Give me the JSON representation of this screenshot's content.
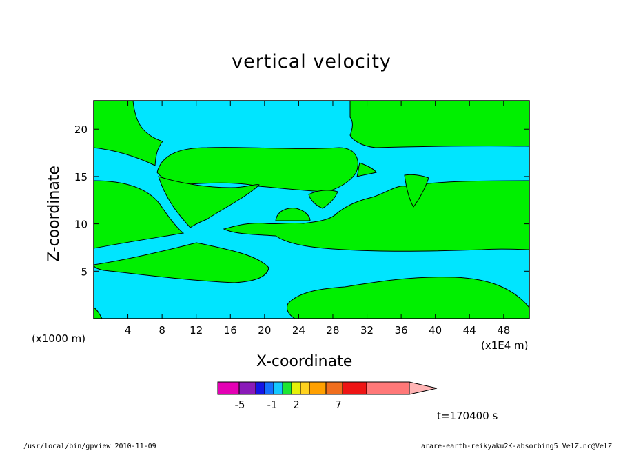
{
  "page": {
    "title": "vertical velocity",
    "time_label": "t=170400 s",
    "footer_left": "/usr/local/bin/gpview  2010-11-09",
    "footer_right": "arare-earth-reikyaku2K-absorbing5_VelZ.nc@VelZ"
  },
  "chart_data": {
    "type": "heatmap",
    "title": "vertical velocity",
    "xlabel": "X-coordinate",
    "ylabel": "Z-coordinate",
    "x_unit_left": "(x1000 m)",
    "x_unit_right": "(x1E4 m)",
    "xlim": [
      0,
      51
    ],
    "ylim": [
      0,
      23
    ],
    "x_ticks": [
      4,
      8,
      12,
      16,
      20,
      24,
      28,
      32,
      36,
      40,
      44,
      48
    ],
    "y_ticks": [
      5,
      10,
      15,
      20
    ],
    "grid": false,
    "regions": {
      "cyan": "#00e5ff",
      "green": "#00f000"
    },
    "colorbar": {
      "tick_labels": [
        "-5",
        "-1",
        "2",
        "7"
      ],
      "colors": [
        "#e400b4",
        "#8a1ab8",
        "#1414e6",
        "#1470ff",
        "#14c8ff",
        "#1ee632",
        "#e6f00a",
        "#ffd21e",
        "#ffa000",
        "#f06e1e",
        "#ee1414",
        "#ff7878",
        "#ffb4b4"
      ],
      "extend": "max"
    }
  }
}
